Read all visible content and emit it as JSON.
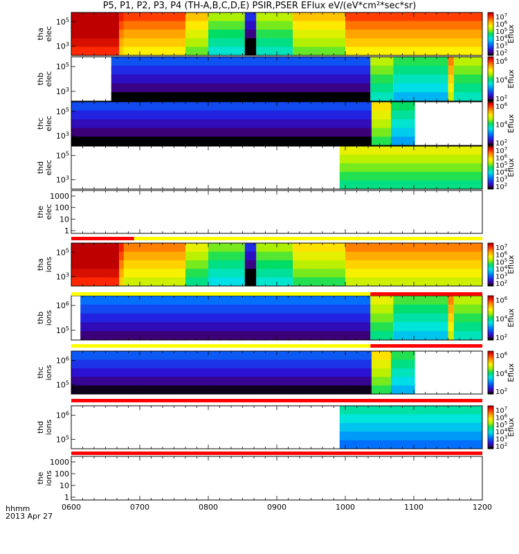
{
  "title": "P5, P1, P2, P3, P4 (TH-A,B,C,D,E) PSIR,PSER EFlux eV/(eV*cm²*sec*sr)",
  "footer": {
    "line1": "hhmm",
    "line2": "2013 Apr 27"
  },
  "chart_data": {
    "type": "heatmap",
    "title": "P5, P1, P2, P3, P4 (TH-A,B,C,D,E) PSIR,PSER EFlux eV/(eV*cm²*sec*sr)",
    "xlabel": "hhmm",
    "date": "2013 Apr 27",
    "x_tick_labels": [
      "0600",
      "0700",
      "0800",
      "0900",
      "1000",
      "1100",
      "1200"
    ],
    "xlim": [
      "06:00",
      "12:00"
    ],
    "panels": [
      {
        "label": [
          "tha",
          "elec"
        ],
        "kind": "spec",
        "y_ticks": [
          "10^5",
          "10^3"
        ],
        "colorbar": {
          "label": "Eflux",
          "ticks": [
            "10^7",
            "10^6",
            "10^5",
            "10^4",
            "10^3",
            "10^2"
          ]
        },
        "segments": [
          {
            "from": "06:00",
            "to": "06:42",
            "level": 1.0
          },
          {
            "from": "06:42",
            "to": "06:46",
            "level": 0.82
          },
          {
            "from": "06:46",
            "to": "07:40",
            "level": 0.78
          },
          {
            "from": "07:40",
            "to": "08:00",
            "level": 0.64
          },
          {
            "from": "08:00",
            "to": "08:32",
            "level": 0.48
          },
          {
            "from": "08:32",
            "to": "08:42",
            "level": 0.03
          },
          {
            "from": "08:42",
            "to": "09:14",
            "level": 0.5
          },
          {
            "from": "09:14",
            "to": "10:00",
            "level": 0.64
          },
          {
            "from": "10:00",
            "to": "12:00",
            "level": 0.78
          }
        ]
      },
      {
        "label": [
          "thb",
          "elec"
        ],
        "kind": "spec",
        "y_ticks": [
          "10^5",
          "10^3"
        ],
        "colorbar": {
          "label": "Eflux",
          "ticks": [
            "10^6",
            "10^4",
            "10^2"
          ]
        },
        "segments": [
          {
            "from": "06:35",
            "to": "10:22",
            "level": 0.08
          },
          {
            "from": "10:22",
            "to": "10:42",
            "level": 0.5
          },
          {
            "from": "10:42",
            "to": "11:30",
            "level": 0.4
          },
          {
            "from": "11:30",
            "to": "11:35",
            "level": 0.72
          },
          {
            "from": "11:35",
            "to": "12:00",
            "level": 0.5
          }
        ]
      },
      {
        "label": [
          "thc",
          "elec"
        ],
        "kind": "spec",
        "y_ticks": [
          "10^5",
          "10^3"
        ],
        "colorbar": {
          "label": "Eflux",
          "ticks": [
            "10^6",
            "10^4",
            "10^2"
          ]
        },
        "segments": [
          {
            "from": "06:00",
            "to": "10:23",
            "level": 0.07
          },
          {
            "from": "10:23",
            "to": "10:40",
            "level": 0.6
          },
          {
            "from": "10:40",
            "to": "11:01",
            "level": 0.38
          }
        ]
      },
      {
        "label": [
          "thd",
          "elec"
        ],
        "kind": "spec",
        "y_ticks": [
          "10^5",
          "10^3"
        ],
        "colorbar": {
          "label": "Eflux",
          "ticks": [
            "10^7",
            "10^6",
            "10^5",
            "10^4",
            "10^3",
            "10^2"
          ]
        },
        "segments": [
          {
            "from": "09:55",
            "to": "12:00",
            "level": 0.55
          }
        ]
      },
      {
        "label": [
          "the",
          "elec"
        ],
        "kind": "empty",
        "y_ticks": [
          "1000",
          "100",
          "10",
          "1"
        ]
      },
      {
        "label": [
          "tha",
          "ions"
        ],
        "kind": "spec",
        "y_ticks": [
          "10^5",
          "10^3"
        ],
        "colorbar": {
          "label": "Eflux",
          "ticks": [
            "10^7",
            "10^6",
            "10^5",
            "10^4",
            "10^3",
            "10^2"
          ]
        },
        "segments": [
          {
            "from": "06:00",
            "to": "06:42",
            "level": 1.0
          },
          {
            "from": "06:42",
            "to": "06:46",
            "level": 0.82
          },
          {
            "from": "06:46",
            "to": "07:40",
            "level": 0.72
          },
          {
            "from": "07:40",
            "to": "08:00",
            "level": 0.55
          },
          {
            "from": "08:00",
            "to": "08:32",
            "level": 0.45
          },
          {
            "from": "08:32",
            "to": "08:42",
            "level": 0.03
          },
          {
            "from": "08:42",
            "to": "09:14",
            "level": 0.48
          },
          {
            "from": "09:14",
            "to": "10:00",
            "level": 0.6
          },
          {
            "from": "10:00",
            "to": "12:00",
            "level": 0.72
          }
        ]
      },
      {
        "label": [
          "thb",
          "ions"
        ],
        "kind": "spec",
        "y_ticks": [
          "10^6",
          "10^5"
        ],
        "colorbar": {
          "label": "Eflux",
          "ticks": [
            "10^6",
            "10^4",
            "10^2"
          ]
        },
        "segments": [
          {
            "from": "06:08",
            "to": "10:22",
            "level": 0.12
          },
          {
            "from": "10:22",
            "to": "10:42",
            "level": 0.55
          },
          {
            "from": "10:42",
            "to": "11:30",
            "level": 0.42
          },
          {
            "from": "11:30",
            "to": "11:35",
            "level": 0.72
          },
          {
            "from": "11:35",
            "to": "12:00",
            "level": 0.5
          }
        ]
      },
      {
        "label": [
          "thc",
          "ions"
        ],
        "kind": "spec",
        "y_ticks": [
          "10^6",
          "10^5"
        ],
        "colorbar": {
          "label": "Eflux",
          "ticks": [
            "10^6",
            "10^4",
            "10^2"
          ]
        },
        "segments": [
          {
            "from": "06:00",
            "to": "10:23",
            "level": 0.09
          },
          {
            "from": "10:23",
            "to": "10:40",
            "level": 0.6
          },
          {
            "from": "10:40",
            "to": "11:01",
            "level": 0.4
          }
        ]
      },
      {
        "label": [
          "thd",
          "ions"
        ],
        "kind": "spec",
        "y_ticks": [
          "10^6",
          "10^5"
        ],
        "colorbar": {
          "label": "Eflux",
          "ticks": [
            "10^7",
            "10^6",
            "10^5",
            "10^4",
            "10^3",
            "10^2"
          ]
        },
        "segments": [
          {
            "from": "09:55",
            "to": "12:00",
            "level": 0.32
          }
        ]
      },
      {
        "label": [
          "the",
          "ions"
        ],
        "kind": "empty",
        "y_ticks": [
          "1000",
          "100",
          "10",
          "1"
        ]
      }
    ],
    "flag_bars": [
      {
        "after_panel": 4,
        "segments": [
          {
            "from": "06:00",
            "to": "06:55",
            "color": "#ff0000"
          },
          {
            "from": "06:55",
            "to": "12:00",
            "color": "#ffff00"
          }
        ]
      },
      {
        "after_panel": 5,
        "segments": [
          {
            "from": "06:00",
            "to": "10:22",
            "color": "#ffff00"
          },
          {
            "from": "10:22",
            "to": "12:00",
            "color": "#ff0000"
          }
        ]
      },
      {
        "after_panel": 6,
        "segments": [
          {
            "from": "06:00",
            "to": "10:22",
            "color": "#ffff00"
          },
          {
            "from": "10:22",
            "to": "12:00",
            "color": "#ff0000"
          }
        ]
      },
      {
        "after_panel": 7,
        "segments": [
          {
            "from": "06:00",
            "to": "12:00",
            "color": "#ff0000"
          }
        ]
      },
      {
        "after_panel": 8,
        "segments": [
          {
            "from": "06:00",
            "to": "12:00",
            "color": "#ff0000"
          }
        ]
      }
    ]
  }
}
